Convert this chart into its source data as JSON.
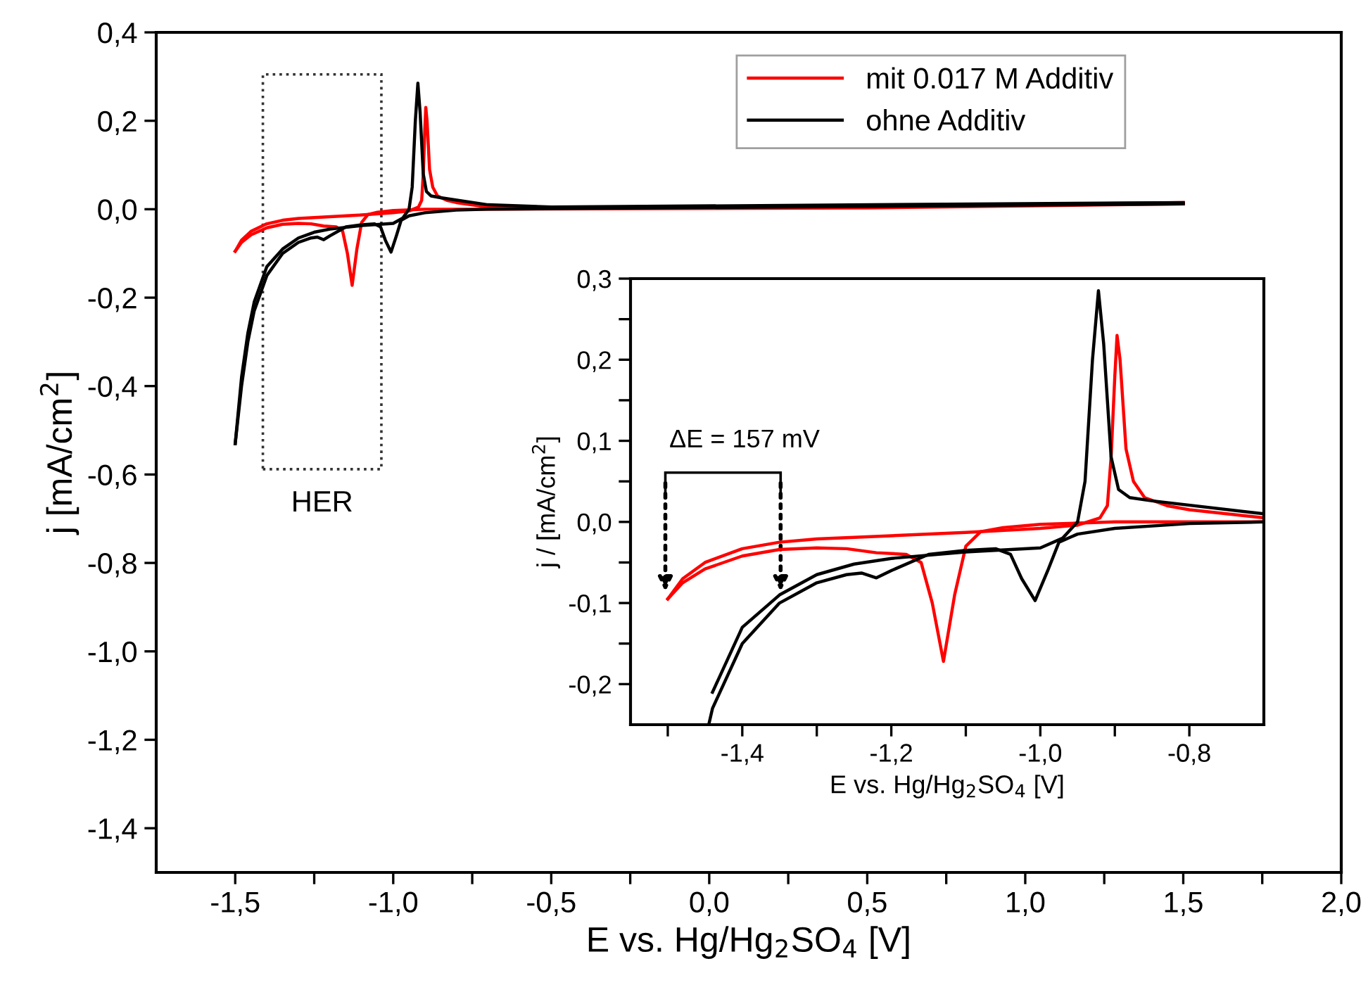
{
  "chart_data": [
    {
      "type": "line",
      "xlabel": "E vs. Hg/Hg$_{2}$SO$_{4}$ [V]",
      "ylabel": "j [mA/cm$^{2}$]",
      "annotations": [
        "HER"
      ],
      "legend": "top right",
      "grid": false,
      "marker": "none",
      "line_style": "solid",
      "xlim": [
        -1.75,
        2.0
      ],
      "ylim": [
        -1.5,
        0.4
      ],
      "xticks": [
        {
          "value": -1.5,
          "label": "-1,5"
        },
        {
          "value": -1.25,
          "label": null
        },
        {
          "value": -1.0,
          "label": "-1,0"
        },
        {
          "value": -0.75,
          "label": null
        },
        {
          "value": -0.5,
          "label": "-0,5"
        },
        {
          "value": -0.25,
          "label": null
        },
        {
          "value": 0.0,
          "label": "0,0"
        },
        {
          "value": 0.25,
          "label": null
        },
        {
          "value": 0.5,
          "label": "0,5"
        },
        {
          "value": 0.75,
          "label": null
        },
        {
          "value": 1.0,
          "label": "1,0"
        },
        {
          "value": 1.25,
          "label": null
        },
        {
          "value": 1.5,
          "label": "1,5"
        },
        {
          "value": 1.75,
          "label": null
        },
        {
          "value": 2.0,
          "label": "2,0"
        }
      ],
      "yticks": [
        {
          "value": -1.4,
          "label": "-1,4"
        },
        {
          "value": -1.2,
          "label": "-1,2"
        },
        {
          "value": -1.0,
          "label": "-1,0"
        },
        {
          "value": -0.8,
          "label": "-0,8"
        },
        {
          "value": -0.6,
          "label": "-0,6"
        },
        {
          "value": -0.4,
          "label": "-0,4"
        },
        {
          "value": -0.2,
          "label": "-0,2"
        },
        {
          "value": 0.0,
          "label": "0,0"
        },
        {
          "value": 0.2,
          "label": "0,2"
        },
        {
          "value": 0.4,
          "label": "0,4"
        }
      ],
      "series": [
        {
          "name": "mit 0.017 M Additiv",
          "color": "#ff0000",
          "x": [
            -1.5,
            -1.48,
            -1.45,
            -1.4,
            -1.35,
            -1.3,
            -1.2,
            -1.1,
            -1.0,
            -0.95,
            -0.92,
            -0.91,
            -0.905,
            -0.9,
            -0.897,
            -0.893,
            -0.885,
            -0.875,
            -0.86,
            -0.83,
            -0.8,
            -0.7,
            0.0,
            1.5
          ],
          "values": [
            -0.095,
            -0.07,
            -0.05,
            -0.033,
            -0.025,
            -0.021,
            -0.017,
            -0.013,
            -0.008,
            -0.004,
            0.005,
            0.02,
            0.08,
            0.18,
            0.23,
            0.2,
            0.09,
            0.05,
            0.03,
            0.02,
            0.015,
            0.005,
            0.003,
            0.015
          ]
        },
        {
          "color": "#ff0000",
          "x": [
            -1.5,
            -1.48,
            -1.45,
            -1.4,
            -1.35,
            -1.3,
            -1.26,
            -1.22,
            -1.18,
            -1.16,
            -1.145,
            -1.13,
            -1.115,
            -1.1,
            -1.08,
            -1.05,
            -1.0,
            -0.9,
            -0.7,
            0.5,
            1.5
          ],
          "values": [
            -0.095,
            -0.075,
            -0.058,
            -0.042,
            -0.034,
            -0.032,
            -0.033,
            -0.038,
            -0.04,
            -0.05,
            -0.1,
            -0.172,
            -0.09,
            -0.03,
            -0.012,
            -0.007,
            -0.003,
            0.0,
            0.0,
            0.003,
            0.012
          ]
        },
        {
          "name": "ohne Additiv",
          "color": "#000000",
          "x": [
            -1.5,
            -1.48,
            -1.46,
            -1.44,
            -1.4,
            -1.35,
            -1.3,
            -1.25,
            -1.2,
            -1.1,
            -1.0,
            -0.97,
            -0.95,
            -0.94,
            -0.93,
            -0.922,
            -0.915,
            -0.905,
            -0.895,
            -0.88,
            -0.85,
            -0.7,
            -0.5,
            1.5
          ],
          "values": [
            -0.53,
            -0.38,
            -0.28,
            -0.21,
            -0.13,
            -0.09,
            -0.065,
            -0.052,
            -0.045,
            -0.037,
            -0.032,
            -0.02,
            0.0,
            0.05,
            0.2,
            0.285,
            0.22,
            0.08,
            0.04,
            0.03,
            0.026,
            0.01,
            0.005,
            0.015
          ]
        },
        {
          "color": "#000000",
          "x": [
            -1.5,
            -1.48,
            -1.46,
            -1.44,
            -1.4,
            -1.35,
            -1.3,
            -1.26,
            -1.24,
            -1.22,
            -1.2,
            -1.15,
            -1.1,
            -1.06,
            -1.04,
            -1.025,
            -1.007,
            -0.99,
            -0.975,
            -0.95,
            -0.9,
            -0.8,
            -0.7,
            1.5
          ],
          "values": [
            -0.53,
            -0.4,
            -0.3,
            -0.23,
            -0.15,
            -0.1,
            -0.075,
            -0.065,
            -0.063,
            -0.069,
            -0.06,
            -0.04,
            -0.035,
            -0.033,
            -0.04,
            -0.07,
            -0.097,
            -0.06,
            -0.025,
            -0.015,
            -0.008,
            -0.002,
            0.0,
            0.012
          ]
        }
      ]
    },
    {
      "type": "line",
      "xlabel": "E vs. Hg/Hg$_{2}$SO$_{4}$ [V]",
      "ylabel": "j / [mA/cm$^{2}$]",
      "annotations": [
        "ΔE = 157 mV"
      ],
      "grid": false,
      "marker": "none",
      "line_style": "solid",
      "xlim": [
        -1.55,
        -0.7
      ],
      "ylim": [
        -0.25,
        0.3
      ],
      "xticks": [
        {
          "value": -1.5,
          "label": null
        },
        {
          "value": -1.4,
          "label": "-1,4"
        },
        {
          "value": -1.3,
          "label": null
        },
        {
          "value": -1.2,
          "label": "-1,2"
        },
        {
          "value": -1.1,
          "label": null
        },
        {
          "value": -1.0,
          "label": "-1,0"
        },
        {
          "value": -0.9,
          "label": null
        },
        {
          "value": -0.8,
          "label": "-0,8"
        }
      ],
      "yticks": [
        {
          "value": -0.2,
          "label": "-0,2"
        },
        {
          "value": -0.15,
          "label": null
        },
        {
          "value": -0.1,
          "label": "-0,1"
        },
        {
          "value": -0.05,
          "label": null
        },
        {
          "value": 0.0,
          "label": "0,0"
        },
        {
          "value": 0.05,
          "label": null
        },
        {
          "value": 0.1,
          "label": "0,1"
        },
        {
          "value": 0.15,
          "label": null
        },
        {
          "value": 0.2,
          "label": "0,2"
        },
        {
          "value": 0.25,
          "label": null
        },
        {
          "value": 0.3,
          "label": "0,3"
        }
      ],
      "series": [
        {
          "color": "#ff0000",
          "x": [
            -1.5,
            -1.48,
            -1.45,
            -1.4,
            -1.35,
            -1.3,
            -1.2,
            -1.1,
            -1.0,
            -0.95,
            -0.92,
            -0.91,
            -0.905,
            -0.9,
            -0.897,
            -0.893,
            -0.885,
            -0.875,
            -0.86,
            -0.83,
            -0.8,
            -0.7
          ],
          "values": [
            -0.095,
            -0.07,
            -0.05,
            -0.033,
            -0.025,
            -0.021,
            -0.017,
            -0.013,
            -0.008,
            -0.004,
            0.005,
            0.02,
            0.08,
            0.18,
            0.23,
            0.2,
            0.09,
            0.05,
            0.03,
            0.02,
            0.015,
            0.005
          ]
        },
        {
          "color": "#ff0000",
          "x": [
            -1.5,
            -1.48,
            -1.45,
            -1.4,
            -1.35,
            -1.3,
            -1.26,
            -1.22,
            -1.18,
            -1.16,
            -1.145,
            -1.13,
            -1.115,
            -1.1,
            -1.08,
            -1.05,
            -1.0,
            -0.9,
            -0.7
          ],
          "values": [
            -0.095,
            -0.075,
            -0.058,
            -0.042,
            -0.034,
            -0.032,
            -0.033,
            -0.038,
            -0.04,
            -0.05,
            -0.1,
            -0.172,
            -0.09,
            -0.03,
            -0.012,
            -0.007,
            -0.003,
            0.0,
            0.0
          ]
        },
        {
          "color": "#000000",
          "x": [
            -1.44,
            -1.4,
            -1.35,
            -1.3,
            -1.25,
            -1.2,
            -1.1,
            -1.0,
            -0.97,
            -0.95,
            -0.94,
            -0.93,
            -0.922,
            -0.915,
            -0.905,
            -0.895,
            -0.88,
            -0.85,
            -0.7
          ],
          "values": [
            -0.21,
            -0.13,
            -0.09,
            -0.065,
            -0.052,
            -0.045,
            -0.037,
            -0.032,
            -0.02,
            0.0,
            0.05,
            0.2,
            0.285,
            0.22,
            0.08,
            0.04,
            0.03,
            0.026,
            0.01
          ]
        },
        {
          "color": "#000000",
          "x": [
            -1.445,
            -1.44,
            -1.4,
            -1.35,
            -1.3,
            -1.26,
            -1.24,
            -1.22,
            -1.2,
            -1.15,
            -1.1,
            -1.06,
            -1.04,
            -1.025,
            -1.007,
            -0.99,
            -0.975,
            -0.95,
            -0.9,
            -0.8,
            -0.7
          ],
          "values": [
            -0.25,
            -0.23,
            -0.15,
            -0.1,
            -0.075,
            -0.065,
            -0.063,
            -0.069,
            -0.06,
            -0.04,
            -0.035,
            -0.033,
            -0.04,
            -0.07,
            -0.097,
            -0.06,
            -0.025,
            -0.015,
            -0.008,
            -0.002,
            0.0
          ]
        }
      ]
    }
  ]
}
